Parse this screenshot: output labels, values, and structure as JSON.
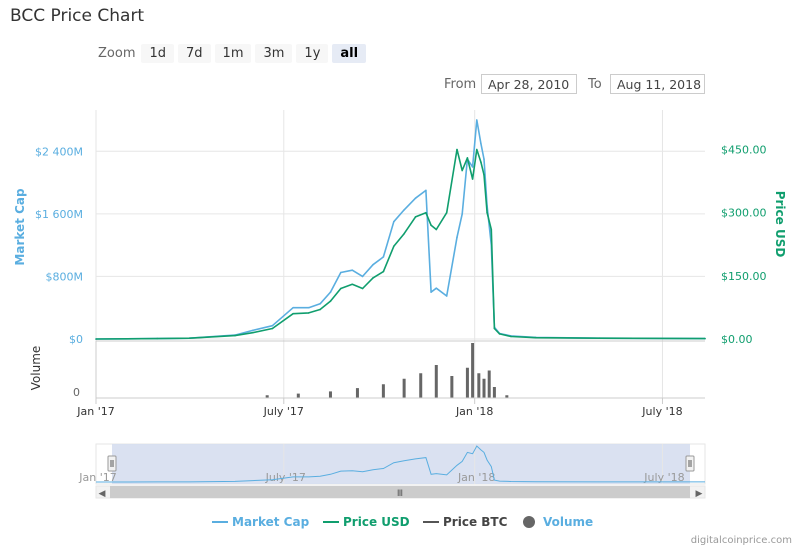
{
  "title": "BCC Price Chart",
  "zoom": {
    "label": "Zoom",
    "buttons": [
      "1d",
      "7d",
      "1m",
      "3m",
      "1y",
      "all"
    ],
    "selected": "all"
  },
  "range": {
    "from_label": "From",
    "from_value": "Apr 28, 2010",
    "to_label": "To",
    "to_value": "Aug 11, 2018"
  },
  "colors": {
    "market_cap": "#5aaee0",
    "price_usd": "#109e6e",
    "price_btc": "#555555",
    "volume": "#666666",
    "navigator_fill": "#d4dcef"
  },
  "chart_data": {
    "type": "line",
    "x_axis": {
      "ticks": [
        "Jan '17",
        "July '17",
        "Jan '18",
        "July '18"
      ],
      "tick_dates": [
        "2017-01-01",
        "2017-07-01",
        "2018-01-01",
        "2018-07-01"
      ],
      "range": [
        "2017-01-01",
        "2018-08-11"
      ]
    },
    "y_left": {
      "label": "Market Cap",
      "ticks": [
        "$0",
        "$800M",
        "$1 600M",
        "$2 400M"
      ],
      "tick_values": [
        0,
        800,
        1600,
        2400
      ],
      "units": "millions USD",
      "range": [
        0,
        2800
      ]
    },
    "y_right": {
      "label": "Price USD",
      "ticks": [
        "$0.00",
        "$150.00",
        "$300.00",
        "$450.00"
      ],
      "tick_values": [
        0,
        150,
        300,
        450
      ],
      "range": [
        0,
        520
      ]
    },
    "volume_axis": {
      "label": "Volume",
      "ticks": [
        "0"
      ]
    },
    "navigator": {
      "ticks": [
        "Jan '17",
        "July '17",
        "Jan '18",
        "July '18"
      ]
    },
    "legend": {
      "placement": "bottom-center",
      "items": [
        "Market Cap",
        "Price USD",
        "Price BTC",
        "Volume"
      ]
    },
    "series": [
      {
        "name": "Market Cap",
        "axis": "left",
        "x": [
          "2017-01-01",
          "2017-03-01",
          "2017-04-01",
          "2017-05-15",
          "2017-06-01",
          "2017-06-20",
          "2017-07-10",
          "2017-07-25",
          "2017-08-05",
          "2017-08-15",
          "2017-08-25",
          "2017-09-05",
          "2017-09-15",
          "2017-09-25",
          "2017-10-05",
          "2017-10-15",
          "2017-10-25",
          "2017-11-05",
          "2017-11-15",
          "2017-11-20",
          "2017-11-25",
          "2017-12-05",
          "2017-12-15",
          "2017-12-20",
          "2017-12-25",
          "2017-12-30",
          "2018-01-03",
          "2018-01-07",
          "2018-01-10",
          "2018-01-13",
          "2018-01-17",
          "2018-01-20",
          "2018-01-25",
          "2018-02-05",
          "2018-03-01",
          "2018-05-01",
          "2018-08-11"
        ],
        "values": [
          0,
          5,
          10,
          50,
          110,
          170,
          400,
          400,
          450,
          600,
          850,
          880,
          800,
          950,
          1050,
          1500,
          1650,
          1800,
          1900,
          600,
          650,
          550,
          1300,
          1600,
          2300,
          2200,
          2800,
          2500,
          2300,
          1700,
          1200,
          150,
          70,
          40,
          20,
          10,
          5
        ]
      },
      {
        "name": "Price USD",
        "axis": "right",
        "x": [
          "2017-01-01",
          "2017-03-01",
          "2017-04-01",
          "2017-05-15",
          "2017-06-01",
          "2017-06-20",
          "2017-07-10",
          "2017-07-25",
          "2017-08-05",
          "2017-08-15",
          "2017-08-25",
          "2017-09-05",
          "2017-09-15",
          "2017-09-25",
          "2017-10-05",
          "2017-10-15",
          "2017-10-25",
          "2017-11-05",
          "2017-11-15",
          "2017-11-20",
          "2017-11-25",
          "2017-12-05",
          "2017-12-15",
          "2017-12-20",
          "2017-12-25",
          "2017-12-30",
          "2018-01-03",
          "2018-01-07",
          "2018-01-10",
          "2018-01-13",
          "2018-01-17",
          "2018-01-20",
          "2018-01-25",
          "2018-02-05",
          "2018-03-01",
          "2018-05-01",
          "2018-08-11"
        ],
        "values": [
          0,
          1,
          2,
          8,
          15,
          25,
          60,
          62,
          70,
          90,
          120,
          130,
          120,
          145,
          160,
          220,
          250,
          290,
          300,
          270,
          260,
          300,
          450,
          400,
          430,
          380,
          450,
          420,
          390,
          300,
          260,
          25,
          12,
          6,
          3,
          2,
          1
        ]
      },
      {
        "name": "Volume",
        "axis": "volume",
        "x": [
          "2017-06-15",
          "2017-07-15",
          "2017-08-15",
          "2017-09-10",
          "2017-10-05",
          "2017-10-25",
          "2017-11-10",
          "2017-11-25",
          "2017-12-10",
          "2017-12-25",
          "2017-12-30",
          "2018-01-05",
          "2018-01-10",
          "2018-01-15",
          "2018-01-20",
          "2018-02-01"
        ],
        "values": [
          5,
          8,
          12,
          18,
          25,
          35,
          45,
          60,
          40,
          55,
          100,
          45,
          35,
          50,
          20,
          5
        ]
      }
    ]
  },
  "attribution": "digitalcoinprice.com"
}
